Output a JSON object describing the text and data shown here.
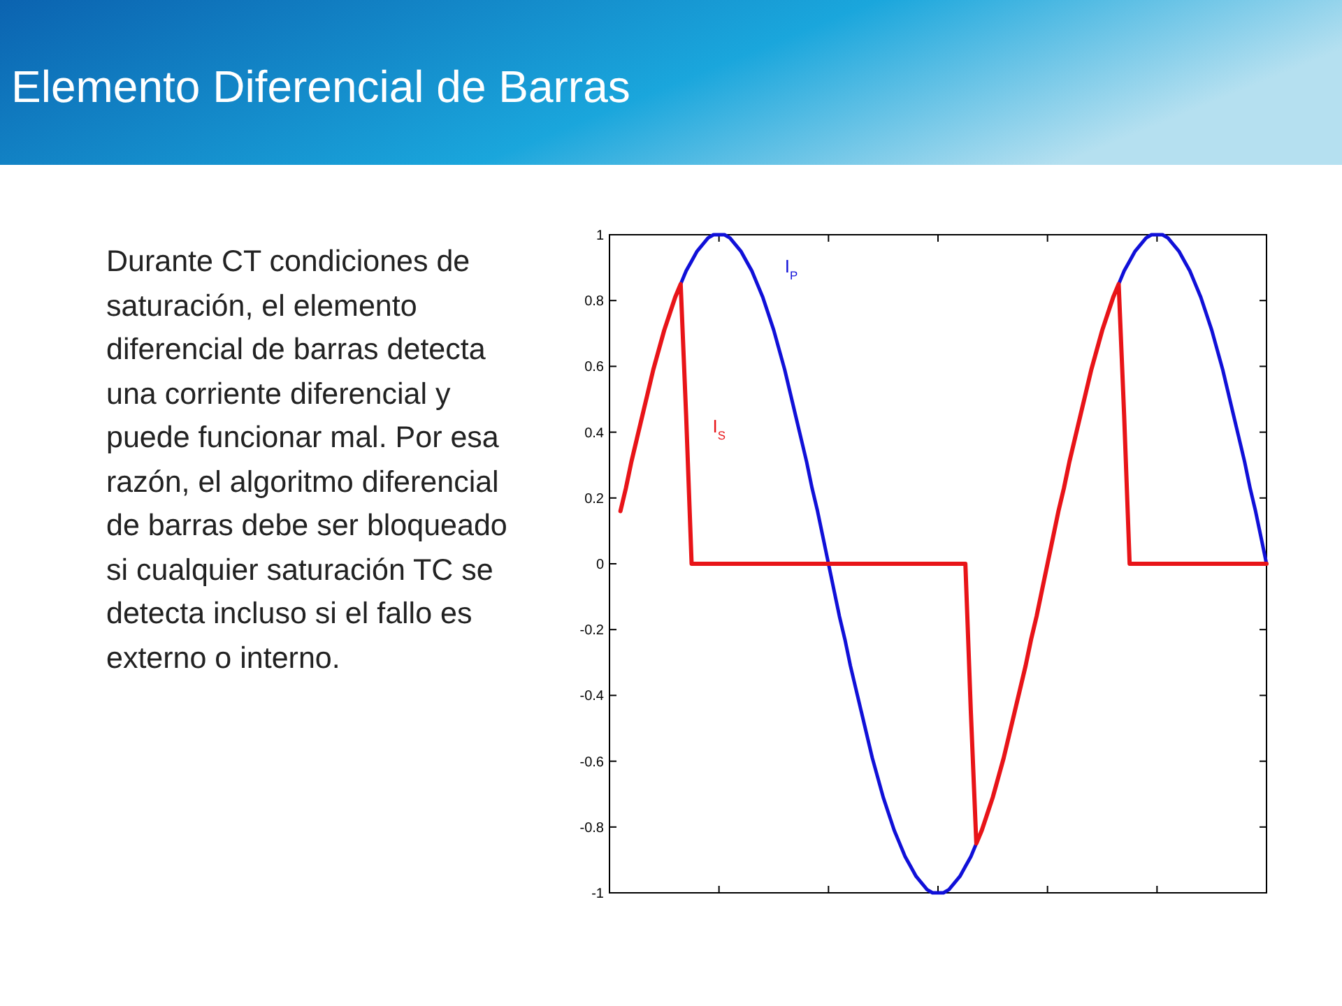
{
  "chart_data": {
    "type": "line",
    "title": "Elemento Diferencial de Barras",
    "annotations": [
      "Durante CT condiciones de saturación, el elemento diferencial de barras detecta una corriente diferencial y puede funcionar mal. Por esa razón, el algoritmo diferencial de barras debe ser bloqueado si cualquier saturación TC se detecta incluso si el fallo es externo o interno."
    ],
    "categories": [
      null,
      null,
      null,
      null,
      null,
      null,
      null,
      null,
      null,
      null,
      null,
      null,
      null,
      null,
      null,
      null,
      null,
      null,
      null,
      null,
      null,
      null,
      null,
      null,
      null,
      null,
      null,
      null,
      null,
      null,
      null,
      null,
      null,
      null,
      null,
      null,
      null,
      null,
      null,
      null,
      null,
      null,
      null,
      null,
      null,
      null,
      null,
      null,
      null,
      null,
      null,
      null,
      null,
      null,
      null,
      null,
      null,
      null,
      null,
      null,
      null,
      null,
      null,
      null,
      null,
      null,
      null,
      null,
      null,
      null,
      null,
      null,
      null,
      null,
      null,
      null,
      null,
      null,
      null,
      null,
      null,
      null,
      null,
      null,
      null,
      null,
      null,
      null,
      null,
      null,
      null,
      null,
      null,
      null,
      null,
      null,
      null,
      null,
      null,
      null,
      null,
      null,
      null,
      null,
      null,
      null,
      null,
      null,
      null,
      null,
      null,
      null,
      null,
      null,
      null,
      null,
      null,
      null,
      null,
      null,
      null
    ],
    "ylim": [
      -1,
      1
    ],
    "yticks": [
      -1,
      -0.8,
      -0.6,
      -0.4,
      -0.2,
      0,
      0.2,
      0.4,
      0.6,
      0.8,
      1
    ],
    "series": [
      {
        "name": "I$_{P}$",
        "color": "#1010d8",
        "values": [
          null,
          null,
          null,
          null,
          null,
          null,
          null,
          null,
          null,
          null,
          null,
          null,
          null,
          0.85,
          0.89,
          0.92,
          0.95,
          0.97,
          0.99,
          1,
          1,
          1,
          0.99,
          0.97,
          0.95,
          0.92,
          0.89,
          0.85,
          0.81,
          0.76,
          0.71,
          0.65,
          0.59,
          0.52,
          0.45,
          0.38,
          0.31,
          0.23,
          0.16,
          0.08,
          0,
          -0.08,
          -0.16,
          -0.23,
          -0.31,
          -0.38,
          -0.45,
          -0.52,
          -0.59,
          -0.65,
          -0.71,
          -0.76,
          -0.81,
          -0.85,
          -0.89,
          -0.92,
          -0.95,
          -0.97,
          -0.99,
          -1,
          -1,
          -1,
          -0.99,
          -0.97,
          -0.95,
          -0.92,
          -0.89,
          -0.85,
          null,
          null,
          null,
          null,
          null,
          null,
          null,
          null,
          null,
          null,
          null,
          null,
          null,
          null,
          null,
          null,
          null,
          null,
          null,
          null,
          null,
          null,
          null,
          null,
          null,
          0.85,
          0.89,
          0.92,
          0.95,
          0.97,
          0.99,
          1,
          1,
          1,
          0.99,
          0.97,
          0.95,
          0.92,
          0.89,
          0.85,
          0.81,
          0.76,
          0.71,
          0.65,
          0.59,
          0.52,
          0.45,
          0.38,
          0.31,
          0.23,
          0.16,
          0.08,
          0
        ]
      },
      {
        "name": "I$_{S}$",
        "color": "#e81418",
        "values": [
          null,
          null,
          0.16,
          0.23,
          0.31,
          0.38,
          0.45,
          0.52,
          0.59,
          0.65,
          0.71,
          0.76,
          0.81,
          0.85,
          0.45,
          0,
          0,
          0,
          0,
          0,
          0,
          0,
          0,
          0,
          0,
          0,
          0,
          0,
          0,
          0,
          0,
          0,
          0,
          0,
          0,
          0,
          0,
          0,
          0,
          0,
          0,
          0,
          0,
          0,
          0,
          0,
          0,
          0,
          0,
          0,
          0,
          0,
          0,
          0,
          0,
          0,
          0,
          0,
          0,
          0,
          0,
          0,
          0,
          0,
          0,
          0,
          -0.45,
          -0.85,
          -0.81,
          -0.76,
          -0.71,
          -0.65,
          -0.59,
          -0.52,
          -0.45,
          -0.38,
          -0.31,
          -0.23,
          -0.16,
          -0.08,
          0,
          0.08,
          0.16,
          0.23,
          0.31,
          0.38,
          0.45,
          0.52,
          0.59,
          0.65,
          0.71,
          0.76,
          0.81,
          0.85,
          0.45,
          0,
          0,
          0,
          0,
          0,
          0,
          0,
          0,
          0,
          0,
          0,
          0,
          0,
          0,
          0,
          0,
          0,
          0,
          0,
          0,
          0,
          0,
          0,
          0,
          0,
          0
        ]
      }
    ]
  }
}
